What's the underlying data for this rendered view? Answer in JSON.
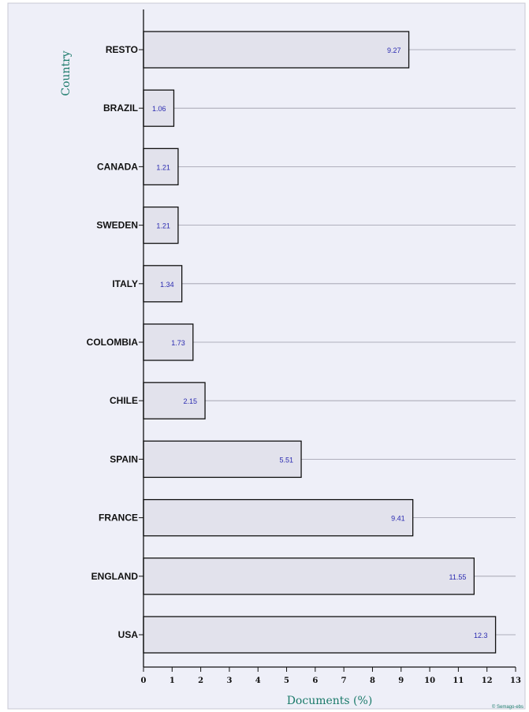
{
  "chart_data": {
    "type": "bar",
    "orientation": "horizontal",
    "categories": [
      "RESTO",
      "BRAZIL",
      "CANADA",
      "SWEDEN",
      "ITALY",
      "COLOMBIA",
      "CHILE",
      "SPAIN",
      "FRANCE",
      "ENGLAND",
      "USA"
    ],
    "values": [
      9.27,
      1.06,
      1.21,
      1.21,
      1.34,
      1.73,
      2.15,
      5.51,
      9.41,
      11.55,
      12.3
    ],
    "value_labels": [
      "9.27",
      "1.06",
      "1.21",
      "1.21",
      "1.34",
      "1.73",
      "2.15",
      "5.51",
      "9.41",
      "11.55",
      "12.3"
    ],
    "xlabel": "Documents (%)",
    "ylabel": "Country",
    "xlim": [
      0,
      13
    ],
    "xticks": [
      0,
      1,
      2,
      3,
      4,
      5,
      6,
      7,
      8,
      9,
      10,
      11,
      12,
      13
    ],
    "grid": "horizontal reference lines per category",
    "colors": {
      "background": "#eeeff8",
      "bar_fill": "#e2e2ec",
      "bar_stroke": "#111111",
      "value_label": "#2a2ab0",
      "axis_title": "#1a7a6a",
      "gridline": "#9a9aa8"
    },
    "credit": "© Semago-ebs"
  }
}
